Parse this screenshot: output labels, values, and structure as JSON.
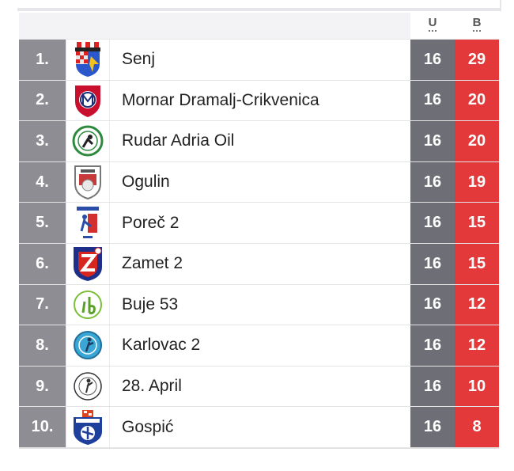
{
  "header": {
    "played_label": "U",
    "points_label": "B"
  },
  "rows": [
    {
      "rank": "1.",
      "team": "Senj",
      "played": "16",
      "points": "29",
      "logo": "senj-logo"
    },
    {
      "rank": "2.",
      "team": "Mornar Dramalj-Crikvenica",
      "played": "16",
      "points": "20",
      "logo": "mornar-logo"
    },
    {
      "rank": "3.",
      "team": "Rudar Adria Oil",
      "played": "16",
      "points": "20",
      "logo": "rudar-logo"
    },
    {
      "rank": "4.",
      "team": "Ogulin",
      "played": "16",
      "points": "19",
      "logo": "ogulin-logo"
    },
    {
      "rank": "5.",
      "team": "Poreč 2",
      "played": "16",
      "points": "15",
      "logo": "porec-logo"
    },
    {
      "rank": "6.",
      "team": "Zamet 2",
      "played": "16",
      "points": "15",
      "logo": "zamet-logo"
    },
    {
      "rank": "7.",
      "team": "Buje 53",
      "played": "16",
      "points": "12",
      "logo": "buje-logo"
    },
    {
      "rank": "8.",
      "team": "Karlovac 2",
      "played": "16",
      "points": "12",
      "logo": "karlovac-logo"
    },
    {
      "rank": "9.",
      "team": "28. April",
      "played": "16",
      "points": "10",
      "logo": "april-logo"
    },
    {
      "rank": "10.",
      "team": "Gospić",
      "played": "16",
      "points": "8",
      "logo": "gospic-logo"
    }
  ],
  "colors": {
    "rank_bg": "#8d8d93",
    "played_bg": "#6e6f76",
    "points_bg": "#e4393a"
  }
}
